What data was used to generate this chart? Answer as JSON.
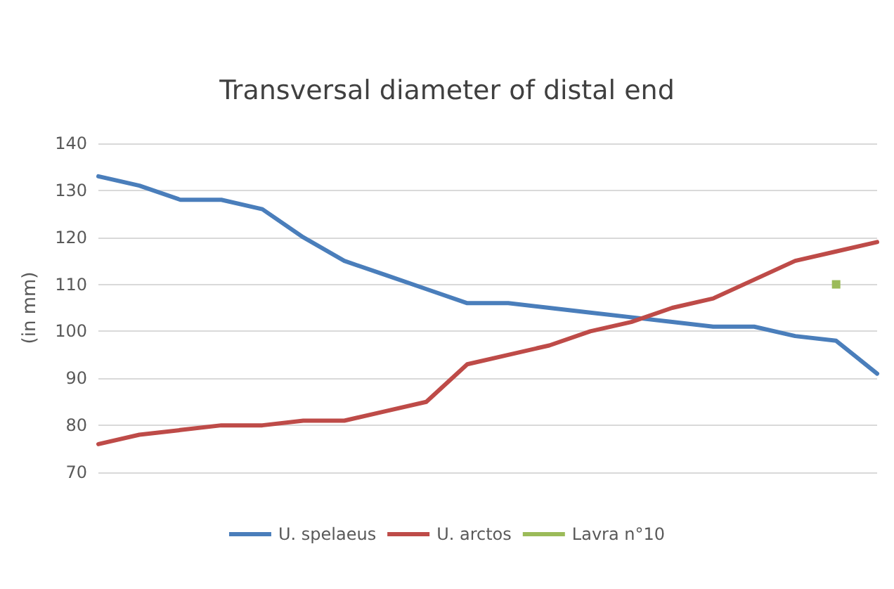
{
  "chart_data": {
    "type": "line",
    "title": "Transversal diameter of distal end",
    "ylabel": "(in mm)",
    "categories": [
      null,
      null,
      null,
      null,
      null,
      null,
      null,
      null,
      null,
      null,
      null,
      null,
      null,
      null,
      null,
      null,
      null,
      null,
      null,
      null
    ],
    "series": [
      {
        "name": "U. spelaeus",
        "color": "#4a7ebb",
        "values": [
          133,
          131,
          128,
          128,
          126,
          120,
          115,
          112,
          109,
          106,
          106,
          105,
          104,
          103,
          102,
          101,
          101,
          99,
          98,
          91
        ]
      },
      {
        "name": "U. arctos",
        "color": "#be4b48",
        "values": [
          76,
          78,
          79,
          80,
          80,
          81,
          81,
          83,
          85,
          93,
          95,
          97,
          100,
          102,
          105,
          107,
          111,
          115,
          117,
          119
        ]
      },
      {
        "name": "Lavra n°10",
        "color": "#9bbb59",
        "marker": "square",
        "values": [
          null,
          null,
          null,
          null,
          null,
          null,
          null,
          null,
          null,
          null,
          null,
          null,
          null,
          null,
          null,
          null,
          null,
          null,
          110,
          null
        ]
      }
    ],
    "ylim": [
      70,
      140
    ],
    "yticks": [
      70,
      80,
      90,
      100,
      110,
      120,
      130,
      140
    ],
    "grid": "y",
    "legend": "bottom",
    "tick_labels": "y",
    "marker": "none",
    "line_style": "solid"
  }
}
